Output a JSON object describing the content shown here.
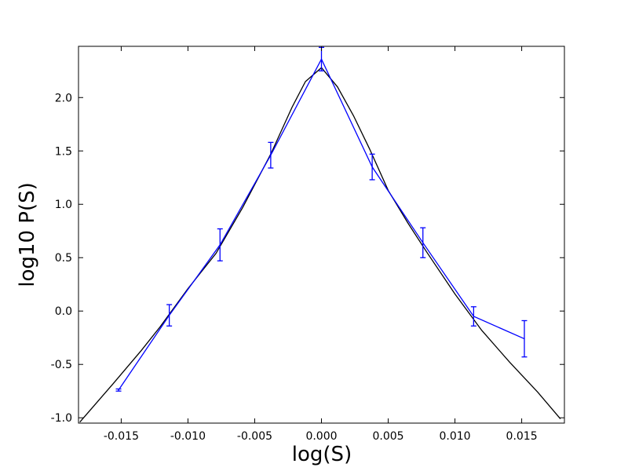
{
  "chart_data": {
    "type": "line",
    "x_label": "log(S)",
    "y_label": "log10 P(S)",
    "xlim": [
      -0.0182,
      0.0182
    ],
    "ylim": [
      -1.05,
      2.48
    ],
    "xticks": [
      {
        "value": -0.015,
        "label": "-0.015"
      },
      {
        "value": -0.01,
        "label": "-0.010"
      },
      {
        "value": -0.005,
        "label": "-0.005"
      },
      {
        "value": 0,
        "label": "0.000"
      },
      {
        "value": 0.005,
        "label": "0.005"
      },
      {
        "value": 0.01,
        "label": "0.010"
      },
      {
        "value": 0.015,
        "label": "0.015"
      }
    ],
    "yticks": [
      {
        "value": -1,
        "label": "-1.0"
      },
      -0.5,
      {
        "value": 0,
        "label": "0.0"
      },
      0.5,
      {
        "value": 1,
        "label": "1.0"
      },
      1.5,
      {
        "value": 2,
        "label": "2.0"
      }
    ],
    "series": [
      {
        "color": "#000000",
        "x": [
          -0.0181,
          -0.0156,
          -0.0135,
          -0.0121,
          -0.01,
          -0.0079,
          -0.0059,
          -0.0038,
          -0.0022,
          -0.0012,
          0,
          0.0012,
          0.0024,
          0.0036,
          0.005,
          0.0065,
          0.0079,
          0.01,
          0.012,
          0.0141,
          0.0162,
          0.0179
        ],
        "values": [
          -1.04,
          -0.68,
          -0.37,
          -0.15,
          0.21,
          0.54,
          0.97,
          1.47,
          1.91,
          2.15,
          2.28,
          2.1,
          1.83,
          1.52,
          1.13,
          0.82,
          0.55,
          0.16,
          -0.18,
          -0.48,
          -0.76,
          -1.01
        ]
      },
      {
        "color": "#0000ff",
        "x": [
          -0.0152,
          -0.0114,
          -0.0076,
          -0.0038,
          0,
          0.0038,
          0.0076,
          0.0114,
          0.0152
        ],
        "values": [
          -0.74,
          -0.04,
          0.62,
          1.46,
          2.36,
          1.35,
          0.64,
          -0.05,
          -0.26
        ],
        "errors": [
          0.01,
          0.1,
          0.15,
          0.12,
          0.11,
          0.12,
          0.14,
          0.09,
          0.17
        ]
      }
    ]
  }
}
